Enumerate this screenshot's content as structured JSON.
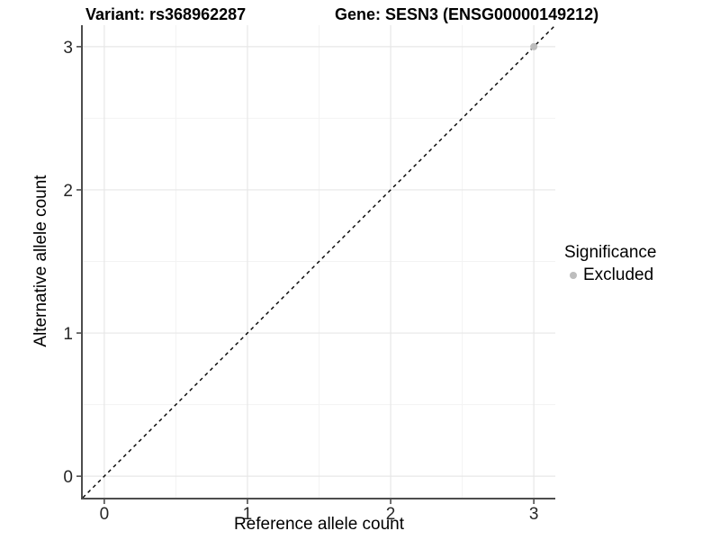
{
  "chart_data": {
    "type": "scatter",
    "title_left": "Variant: rs368962287",
    "title_right": "Gene: SESN3 (ENSG00000149212)",
    "xlabel": "Reference allele count",
    "ylabel": "Alternative allele count",
    "xlim": [
      -0.15,
      3.15
    ],
    "ylim": [
      -0.15,
      3.15
    ],
    "x_ticks": [
      0,
      1,
      2,
      3
    ],
    "y_ticks": [
      0,
      1,
      2,
      3
    ],
    "x_minor_ticks": [
      0.5,
      1.5,
      2.5
    ],
    "y_minor_ticks": [
      0.5,
      1.5,
      2.5
    ],
    "grid": true,
    "series": [
      {
        "name": "Excluded",
        "points": [
          [
            3,
            3
          ]
        ],
        "color": "#bdbdbd",
        "marker": "circle"
      }
    ],
    "reference_line": {
      "equation": "y = x",
      "style": "dashed",
      "color": "#000000"
    },
    "legend": {
      "title": "Significance",
      "position": "right",
      "entries": [
        {
          "label": "Excluded",
          "color": "#bdbdbd",
          "marker": "circle"
        }
      ]
    },
    "colors": {
      "major_grid": "#e7e7e7",
      "minor_grid": "#f3f3f3",
      "axis_line": "#4d4d4d",
      "tick_label": "#262626"
    }
  }
}
